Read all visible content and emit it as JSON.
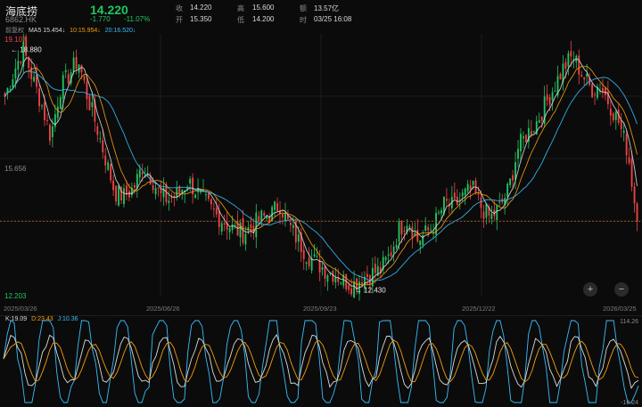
{
  "header": {
    "name": "海底捞",
    "code": "6862.HK",
    "price": "14.220",
    "change": "-1.770",
    "change_pct": "-11.07%",
    "close_label": "收",
    "close_value": "14.220",
    "open_label": "开",
    "open_value": "15.350",
    "high_label": "高",
    "high_value": "15.600",
    "low_label": "低",
    "low_value": "14.200",
    "amount_label": "额",
    "amount_value": "13.57亿",
    "time_label": "时",
    "time_value": "03/25 16:08"
  },
  "ma_bar": {
    "prefix": "前复权",
    "ma5": "MA5 15.454↓",
    "ma10": "10:15.954↓",
    "ma20": "20:16.520↓"
  },
  "price_axis": {
    "top": "19.107",
    "mid": "15.656",
    "bottom": "12.203"
  },
  "annotations": {
    "high": "← 18.880",
    "low": "← 12.430"
  },
  "date_axis": [
    "2025/03/26",
    "2025/06/26",
    "2025/09/23",
    "2025/12/22",
    "2026/03/25"
  ],
  "kdj": {
    "k": "K:19.09",
    "d": "D:23.43",
    "j": "J:10.36",
    "top": "114.26",
    "bottom": "-16.24"
  },
  "controls": {
    "zoom_in": "+",
    "zoom_out": "−"
  },
  "colors": {
    "up": "#22c55e",
    "down": "#ef4444",
    "ma5": "#d9d9d9",
    "ma10": "#f59e0b",
    "ma20": "#38bdf8",
    "k": "#d9d9d9",
    "d": "#f59e0b",
    "j": "#38bdf8"
  },
  "chart_data": {
    "type": "candlestick",
    "close_path": [
      17.6,
      18.3,
      18.9,
      18.1,
      17.4,
      16.5,
      17.8,
      18.2,
      18.6,
      17.6,
      16.8,
      15.9,
      15.0,
      14.9,
      15.1,
      15.7,
      15.4,
      14.9,
      14.8,
      15.0,
      15.3,
      15.0,
      14.7,
      14.4,
      14.2,
      14.0,
      13.9,
      14.1,
      14.3,
      14.4,
      14.7,
      14.1,
      13.7,
      13.3,
      13.1,
      12.9,
      12.8,
      12.6,
      12.5,
      12.7,
      12.8,
      12.9,
      13.3,
      14.0,
      14.3,
      13.7,
      13.9,
      14.2,
      14.7,
      14.6,
      14.9,
      15.1,
      14.6,
      14.3,
      14.6,
      15.1,
      16.2,
      16.6,
      16.9,
      17.4,
      17.9,
      18.4,
      18.7,
      18.2,
      17.8,
      17.9,
      17.4,
      16.9,
      16.1,
      14.22
    ],
    "last_close": 14.22,
    "ylim": [
      12.203,
      19.107
    ]
  }
}
